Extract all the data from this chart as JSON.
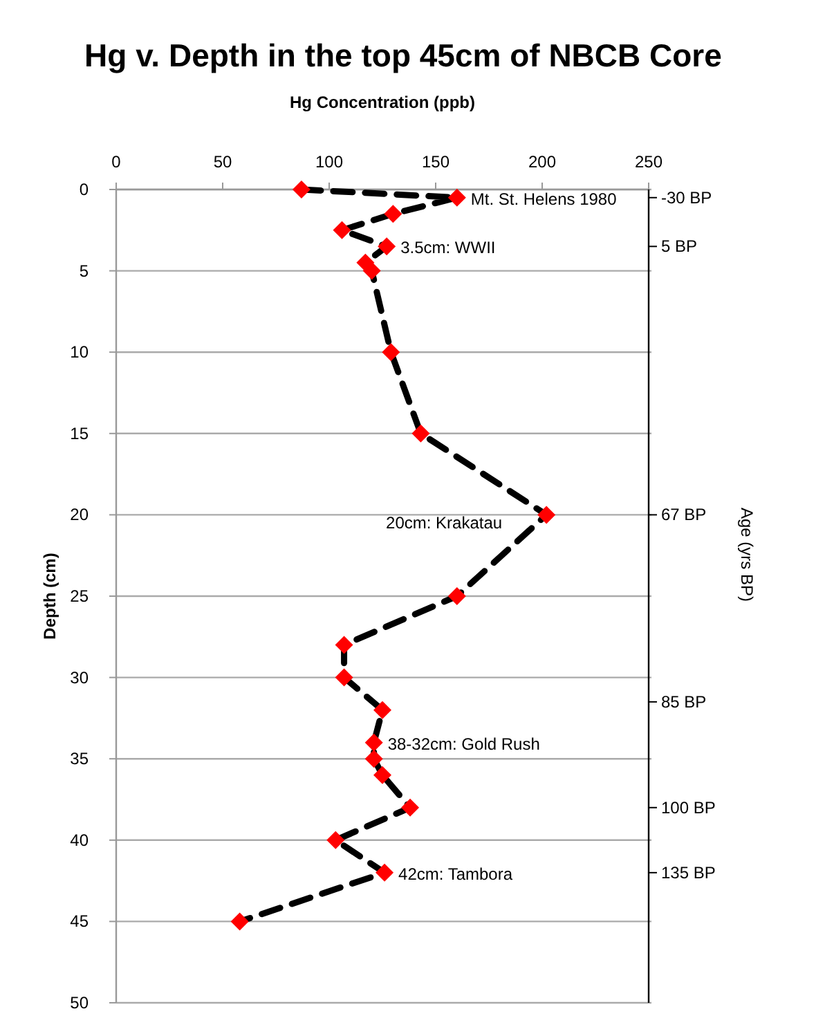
{
  "chart_data": {
    "type": "line",
    "title": "Hg v. Depth in the top 45cm of NBCB Core",
    "xlabel": "Hg Concentration (ppb)",
    "ylabel": "Depth (cm)",
    "y2label": "Age (yrs BP)",
    "series": [
      {
        "color": "#ff0000",
        "x": [
          87,
          160,
          130,
          106,
          127,
          117,
          120,
          129,
          143,
          202,
          160,
          107,
          107,
          125,
          121,
          121,
          125,
          138,
          103,
          126,
          58
        ],
        "values": [
          0,
          0.5,
          1.5,
          2.5,
          3.5,
          4.5,
          5,
          10,
          15,
          20,
          25,
          28,
          30,
          32,
          34,
          35,
          36,
          38,
          40,
          42,
          45
        ]
      }
    ],
    "marker": "diamond",
    "line_style": "dashed",
    "grid": "y",
    "xlim": [
      0,
      250
    ],
    "xticks": [
      0,
      50,
      100,
      150,
      200,
      250
    ],
    "ylim": [
      50,
      0
    ],
    "yticks": [
      0,
      5,
      10,
      15,
      20,
      25,
      30,
      35,
      40,
      45,
      50
    ],
    "annotations": [
      {
        "text": "Mt. St. Helens 1980",
        "x": 160,
        "y": 0.5
      },
      {
        "text": "3.5cm: WWII",
        "x": 127,
        "y": 3.5
      },
      {
        "text": "20cm: Krakatau",
        "x": 202,
        "y": 20
      },
      {
        "text": "38-32cm: Gold Rush",
        "x": 121,
        "y": 34
      },
      {
        "text": "42cm: Tambora",
        "x": 126,
        "y": 42
      }
    ],
    "ref_lines": [
      {
        "axis": "y",
        "value": 0.5,
        "label": "-30 BP"
      },
      {
        "axis": "y",
        "value": 3.5,
        "label": "5 BP"
      },
      {
        "axis": "y",
        "value": 20,
        "label": "67 BP"
      },
      {
        "axis": "y",
        "value": 31.5,
        "label": "85 BP"
      },
      {
        "axis": "y",
        "value": 38,
        "label": "100 BP"
      },
      {
        "axis": "y",
        "value": 42,
        "label": "135 BP"
      }
    ]
  }
}
